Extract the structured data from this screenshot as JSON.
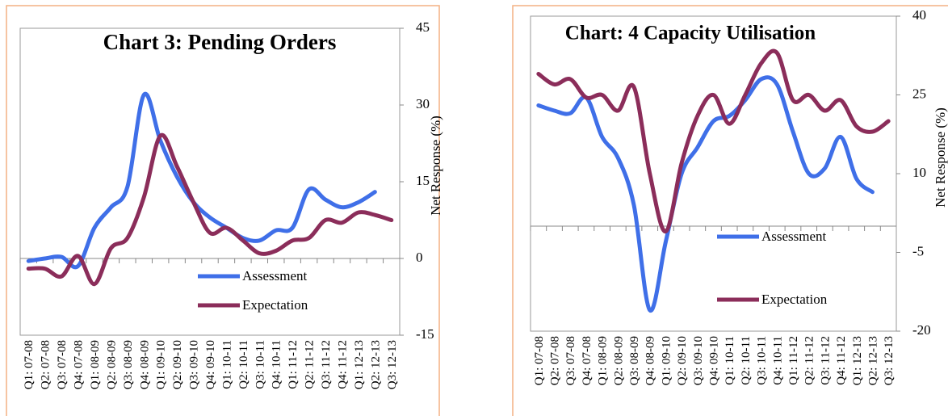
{
  "chart_data": [
    {
      "type": "line",
      "title": "Chart 3: Pending Orders",
      "y_label": "Net Response (%)",
      "categories": [
        "Q1: 07-08",
        "Q2: 07-08",
        "Q3: 07-08",
        "Q4: 07-08",
        "Q1: 08-09",
        "Q2: 08-09",
        "Q3: 08-09",
        "Q4: 08-09",
        "Q1: 09-10",
        "Q2: 09-10",
        "Q3: 09-10",
        "Q4: 09-10",
        "Q1: 10-11",
        "Q2: 10-11",
        "Q3: 10-11",
        "Q4: 10-11",
        "Q1: 11-12",
        "Q2: 11-12",
        "Q3: 11-12",
        "Q4: 11-12",
        "Q1: 12-13",
        "Q2: 12-13",
        "Q3: 12-13"
      ],
      "series": [
        {
          "name": "Assessment",
          "color": "#3f6fe8",
          "values": [
            -0.5,
            0,
            0.3,
            -1.5,
            6,
            10,
            14,
            32,
            23,
            16,
            11,
            8,
            6,
            4,
            3.5,
            5.5,
            6,
            13.5,
            11.5,
            10,
            11,
            13,
            null
          ]
        },
        {
          "name": "Expectation",
          "color": "#8b2d5a",
          "values": [
            -2,
            -2,
            -3.5,
            0.5,
            -5,
            2,
            4,
            12,
            24,
            18,
            11,
            5,
            6,
            3.5,
            1,
            1.5,
            3.5,
            4,
            7.5,
            7,
            9,
            8.5,
            7.5
          ]
        }
      ],
      "ylim": [
        -15,
        45
      ],
      "yticks": [
        -15,
        0,
        15,
        30,
        45
      ]
    },
    {
      "type": "line",
      "title": "Chart: 4 Capacity Utilisation",
      "y_label": "Net Response (%)",
      "categories": [
        "Q1: 07-08",
        "Q2: 07-08",
        "Q3: 07-08",
        "Q4: 07-08",
        "Q1: 08-09",
        "Q2: 08-09",
        "Q3: 08-09",
        "Q4: 08-09",
        "Q1: 09-10",
        "Q2: 09-10",
        "Q3: 09-10",
        "Q4: 09-10",
        "Q1: 10-11",
        "Q2: 10-11",
        "Q3: 10-11",
        "Q4: 10-11",
        "Q1: 11-12",
        "Q2: 11-12",
        "Q3: 11-12",
        "Q4: 11-12",
        "Q1: 12-13",
        "Q2: 12-13",
        "Q3: 12-13"
      ],
      "series": [
        {
          "name": "Assessment",
          "color": "#3f6fe8",
          "values": [
            23,
            22,
            21.5,
            24.5,
            17,
            13,
            4,
            -16,
            -3,
            10,
            15,
            20,
            21,
            24,
            28,
            27,
            18,
            10,
            11,
            17,
            9,
            6.5,
            null
          ]
        },
        {
          "name": "Expectation",
          "color": "#8b2d5a",
          "values": [
            29,
            27,
            28,
            24.5,
            25,
            22,
            26.5,
            10,
            -1,
            12,
            21,
            25,
            19.5,
            25,
            31,
            33,
            24,
            25,
            22,
            24,
            19,
            18,
            20
          ]
        }
      ],
      "ylim": [
        -20,
        40
      ],
      "yticks": [
        -20,
        -5,
        10,
        25,
        40
      ]
    }
  ]
}
